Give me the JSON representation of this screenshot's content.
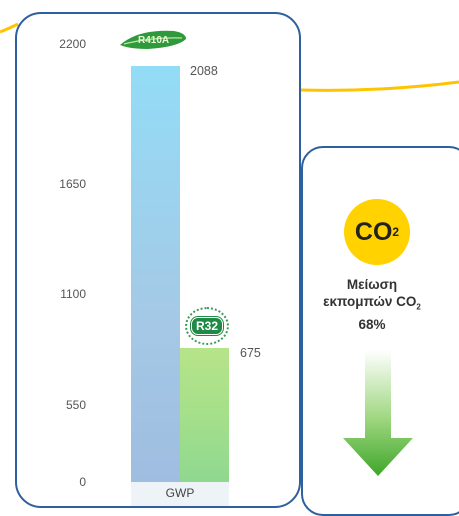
{
  "chart_data": {
    "type": "bar",
    "categories": [
      "GWP"
    ],
    "series": [
      {
        "name": "R410A",
        "values": [
          2088
        ],
        "color": "#8fd8f4"
      },
      {
        "name": "R32",
        "values": [
          675
        ],
        "color": "#a6e07c"
      }
    ],
    "ylim": [
      0,
      2200
    ],
    "yticks": [
      0,
      550,
      1100,
      1650,
      2200
    ],
    "data_labels": [
      "2088",
      "675"
    ],
    "xlabel": "GWP"
  },
  "badges": {
    "r410a_label": "R410A",
    "r32_label": "R32"
  },
  "info": {
    "co2_main": "CO",
    "co2_sub": "2",
    "line1": "Μείωση",
    "line2_main": "εκπομπών CO",
    "line2_sub": "2",
    "percent": "68%"
  },
  "icons": {
    "leaf": "leaf-icon",
    "arrow": "down-arrow-icon"
  },
  "colors": {
    "border": "#2e5f9e",
    "accent_yellow": "#ffd200",
    "arrow_green": "#4caf2a"
  }
}
